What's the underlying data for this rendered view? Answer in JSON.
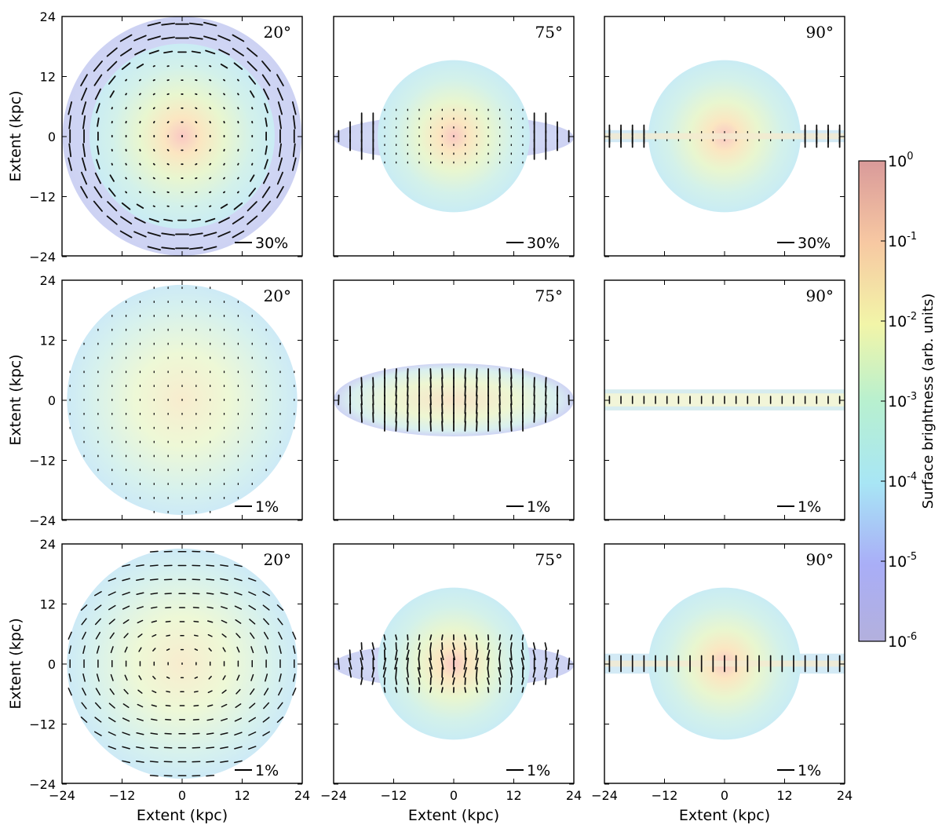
{
  "chart_data": {
    "type": "polarization-map-grid",
    "x_axis": {
      "label": "Extent (kpc)",
      "ticks": [
        -24,
        -12,
        0,
        12,
        24
      ],
      "range": [
        -24,
        24
      ]
    },
    "y_axis": {
      "label": "Extent (kpc)",
      "ticks": [
        24,
        12,
        0,
        -12,
        -24
      ],
      "range": [
        -24,
        24
      ]
    },
    "inclinations": [
      "20°",
      "75°",
      "90°"
    ],
    "colorbar": {
      "label": "Surface brightness (arb. units)",
      "scale": "log",
      "ticks": [
        "10^0",
        "10^-1",
        "10^-2",
        "10^-3",
        "10^-4",
        "10^-5",
        "10^-6"
      ],
      "tick_base": "10",
      "tick_exponents": [
        "0",
        "-1",
        "-2",
        "-3",
        "-4",
        "-5",
        "-6"
      ],
      "range": [
        1e-06,
        1
      ]
    },
    "rows": [
      {
        "row": 1,
        "scale_bar": "30%",
        "pattern": "ring-field (large vectors at outer halo)"
      },
      {
        "row": 2,
        "scale_bar": "1%",
        "pattern": "vertical field in disk"
      },
      {
        "row": 3,
        "scale_bar": "1%",
        "pattern": "spiral field"
      }
    ],
    "panels": [
      {
        "row": 1,
        "col": 1,
        "inclination": 20,
        "scale_bar": "30%"
      },
      {
        "row": 1,
        "col": 2,
        "inclination": 75,
        "scale_bar": "30%"
      },
      {
        "row": 1,
        "col": 3,
        "inclination": 90,
        "scale_bar": "30%"
      },
      {
        "row": 2,
        "col": 1,
        "inclination": 20,
        "scale_bar": "1%"
      },
      {
        "row": 2,
        "col": 2,
        "inclination": 75,
        "scale_bar": "1%"
      },
      {
        "row": 2,
        "col": 3,
        "inclination": 90,
        "scale_bar": "1%"
      },
      {
        "row": 3,
        "col": 1,
        "inclination": 20,
        "scale_bar": "1%"
      },
      {
        "row": 3,
        "col": 2,
        "inclination": 75,
        "scale_bar": "1%"
      },
      {
        "row": 3,
        "col": 3,
        "inclination": 90,
        "scale_bar": "1%"
      }
    ]
  }
}
